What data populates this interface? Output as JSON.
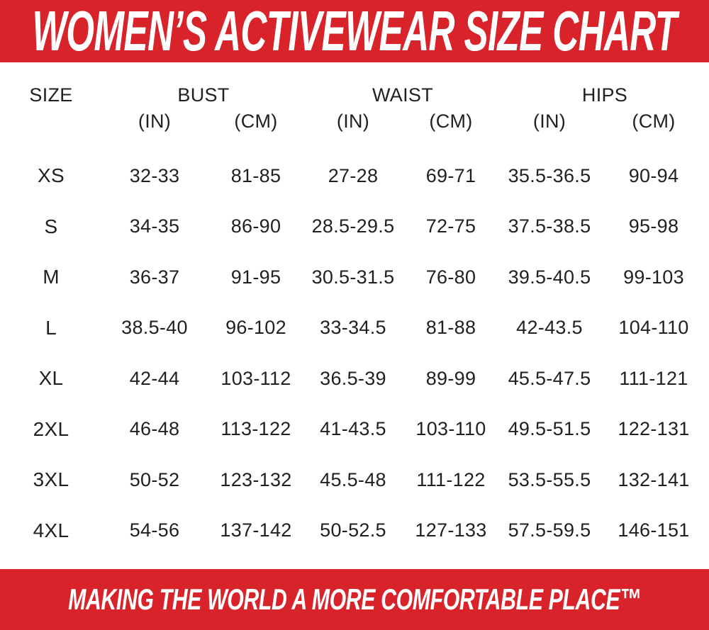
{
  "banner": {
    "title": "WOMEN’S ACTIVEWEAR SIZE CHART"
  },
  "footer": {
    "tagline": "MAKING THE WORLD A MORE COMFORTABLE PLACE™"
  },
  "colors": {
    "banner_red": "#d8232a",
    "banner_text": "#ffffff",
    "table_text": "#231f20",
    "background": "#ffffff"
  },
  "table_header": {
    "size": "SIZE",
    "groups": [
      {
        "label": "BUST",
        "in": "(IN)",
        "cm": "(CM)"
      },
      {
        "label": "WAIST",
        "in": "(IN)",
        "cm": "(CM)"
      },
      {
        "label": "HIPS",
        "in": "(IN)",
        "cm": "(CM)"
      }
    ]
  },
  "chart_data": {
    "type": "table",
    "title": "WOMEN’S ACTIVEWEAR SIZE CHART",
    "columns": [
      "SIZE",
      "BUST (IN)",
      "BUST (CM)",
      "WAIST (IN)",
      "WAIST (CM)",
      "HIPS (IN)",
      "HIPS (CM)"
    ],
    "rows": [
      [
        "XS",
        "32-33",
        "81-85",
        "27-28",
        "69-71",
        "35.5-36.5",
        "90-94"
      ],
      [
        "S",
        "34-35",
        "86-90",
        "28.5-29.5",
        "72-75",
        "37.5-38.5",
        "95-98"
      ],
      [
        "M",
        "36-37",
        "91-95",
        "30.5-31.5",
        "76-80",
        "39.5-40.5",
        "99-103"
      ],
      [
        "L",
        "38.5-40",
        "96-102",
        "33-34.5",
        "81-88",
        "42-43.5",
        "104-110"
      ],
      [
        "XL",
        "42-44",
        "103-112",
        "36.5-39",
        "89-99",
        "45.5-47.5",
        "111-121"
      ],
      [
        "2XL",
        "46-48",
        "113-122",
        "41-43.5",
        "103-110",
        "49.5-51.5",
        "122-131"
      ],
      [
        "3XL",
        "50-52",
        "123-132",
        "45.5-48",
        "111-122",
        "53.5-55.5",
        "132-141"
      ],
      [
        "4XL",
        "54-56",
        "137-142",
        "50-52.5",
        "127-133",
        "57.5-59.5",
        "146-151"
      ]
    ]
  }
}
